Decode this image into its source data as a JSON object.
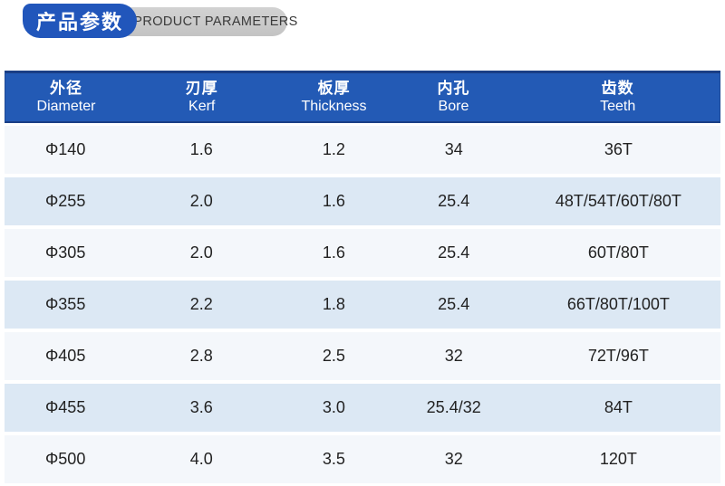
{
  "title": {
    "zh": "产品参数",
    "en": "PRODUCT PARAMETERS"
  },
  "colors": {
    "badge_blue": "#2156bb",
    "badge_gray": "#c9c9c9",
    "header_blue": "#235ab5",
    "header_border_navy": "#1a3e85",
    "row_light": "#f4f7fb",
    "row_alt": "#dce8f4",
    "text_dark": "#222222"
  },
  "table": {
    "columns": [
      {
        "zh": "外径",
        "en": "Diameter"
      },
      {
        "zh": "刃厚",
        "en": "Kerf"
      },
      {
        "zh": "板厚",
        "en": "Thickness"
      },
      {
        "zh": "内孔",
        "en": "Bore"
      },
      {
        "zh": "齿数",
        "en": "Teeth"
      }
    ],
    "rows": [
      [
        "Φ140",
        "1.6",
        "1.2",
        "34",
        "36T"
      ],
      [
        "Φ255",
        "2.0",
        "1.6",
        "25.4",
        "48T/54T/60T/80T"
      ],
      [
        "Φ305",
        "2.0",
        "1.6",
        "25.4",
        "60T/80T"
      ],
      [
        "Φ355",
        "2.2",
        "1.8",
        "25.4",
        "66T/80T/100T"
      ],
      [
        "Φ405",
        "2.8",
        "2.5",
        "32",
        "72T/96T"
      ],
      [
        "Φ455",
        "3.6",
        "3.0",
        "25.4/32",
        "84T"
      ],
      [
        "Φ500",
        "4.0",
        "3.5",
        "32",
        "120T"
      ]
    ]
  }
}
